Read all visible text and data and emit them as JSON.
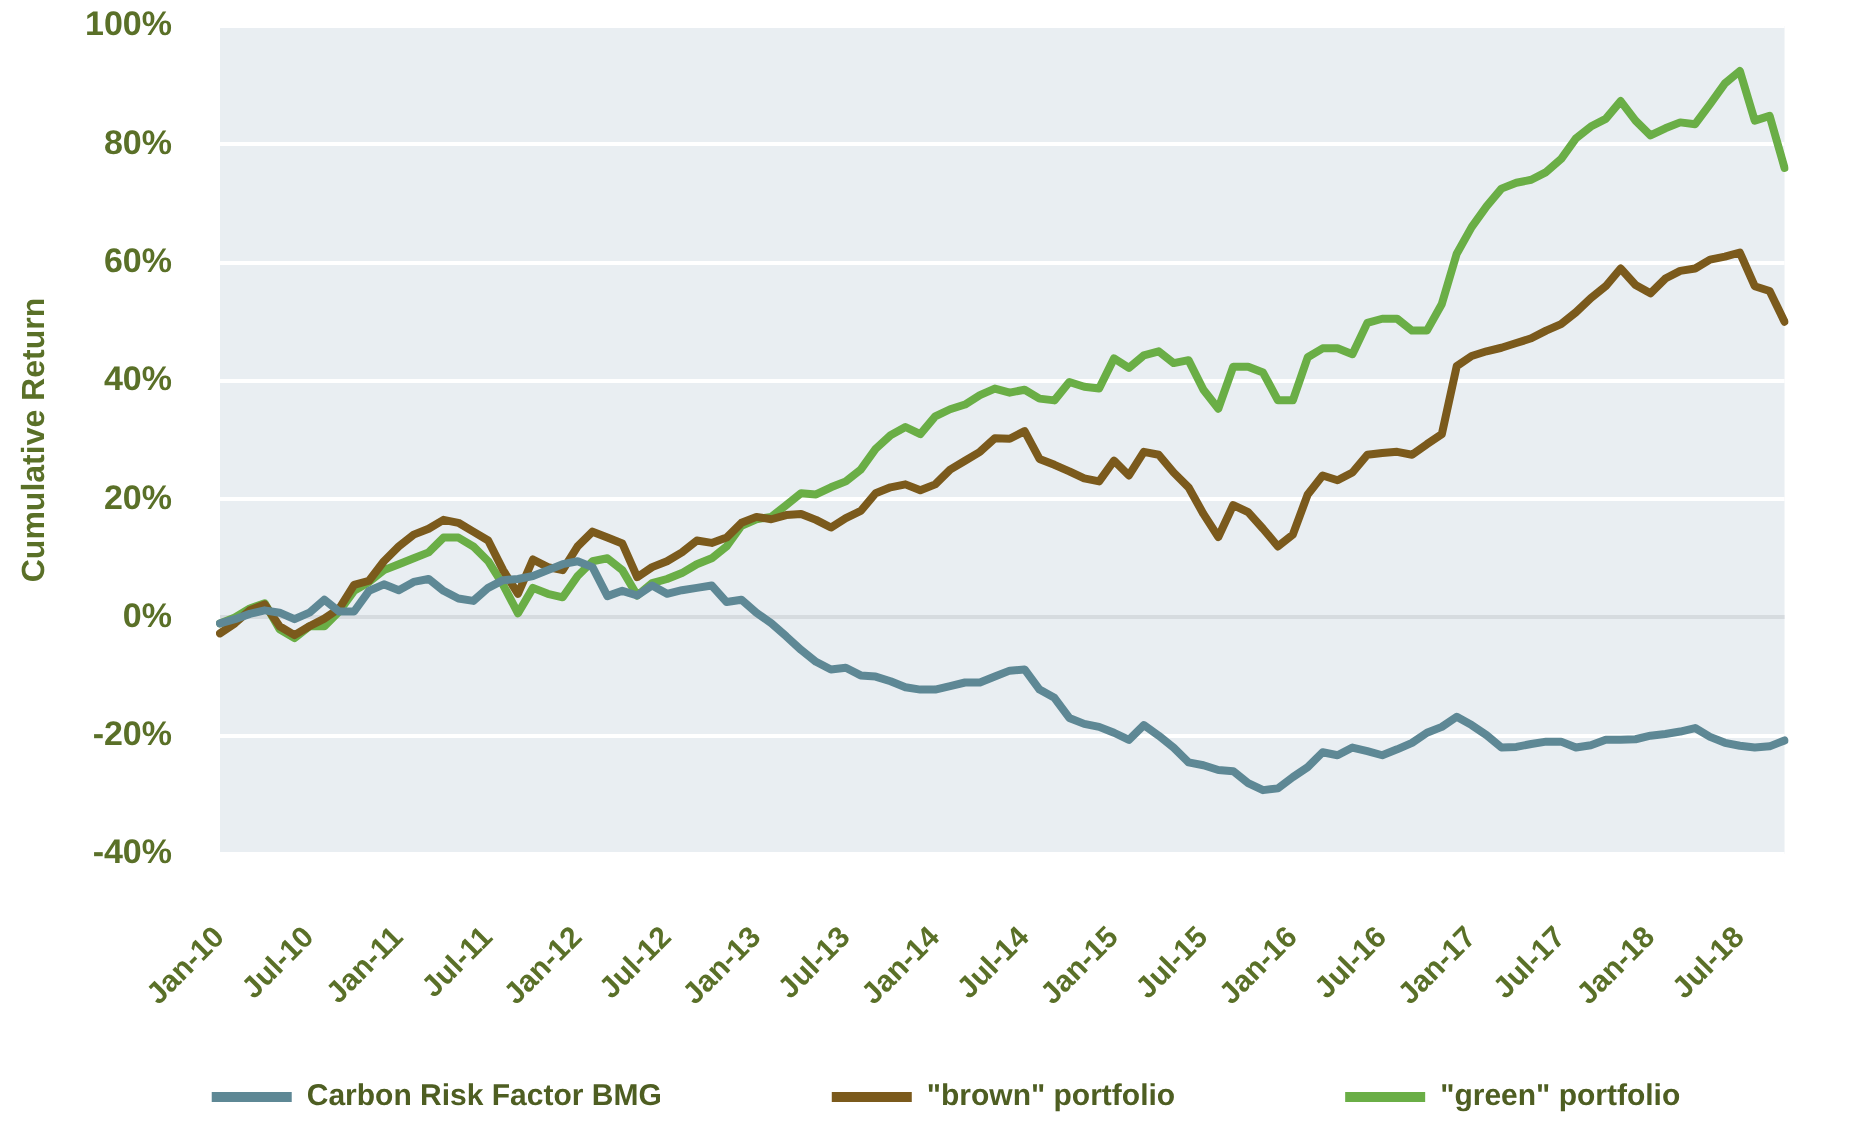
{
  "chart_data": {
    "type": "line",
    "ylabel": "Cumulative Return",
    "categories": [
      "Jan-10",
      null,
      null,
      null,
      null,
      null,
      "Jul-10",
      null,
      null,
      null,
      null,
      null,
      "Jan-11",
      null,
      null,
      null,
      null,
      null,
      "Jul-11",
      null,
      null,
      null,
      null,
      null,
      "Jan-12",
      null,
      null,
      null,
      null,
      null,
      "Jul-12",
      null,
      null,
      null,
      null,
      null,
      "Jan-13",
      null,
      null,
      null,
      null,
      null,
      "Jul-13",
      null,
      null,
      null,
      null,
      null,
      "Jan-14",
      null,
      null,
      null,
      null,
      null,
      "Jul-14",
      null,
      null,
      null,
      null,
      null,
      "Jan-15",
      null,
      null,
      null,
      null,
      null,
      "Jul-15",
      null,
      null,
      null,
      null,
      null,
      "Jan-16",
      null,
      null,
      null,
      null,
      null,
      "Jul-16",
      null,
      null,
      null,
      null,
      null,
      "Jan-17",
      null,
      null,
      null,
      null,
      null,
      "Jul-17",
      null,
      null,
      null,
      null,
      null,
      "Jan-18",
      null,
      null,
      null,
      null,
      null,
      "Jul-18",
      null,
      null,
      null
    ],
    "series": [
      {
        "name": "Carbon Risk Factor BMG",
        "color": "#5e8895",
        "values": [
          -1,
          -0.3,
          0.6,
          1.2,
          0.8,
          -0.3,
          0.8,
          3,
          1,
          1,
          4.5,
          5.6,
          4.6,
          6,
          6.5,
          4.5,
          3.2,
          2.8,
          5,
          6.3,
          6.5,
          7,
          8,
          9,
          9.5,
          8.5,
          3.6,
          4.5,
          3.7,
          5.4,
          4,
          4.6,
          5,
          5.4,
          2.6,
          3,
          0.8,
          -1,
          -3.2,
          -5.5,
          -7.5,
          -8.8,
          -8.5,
          -9.8,
          -10,
          -10.8,
          -11.8,
          -12.2,
          -12.2,
          -11.6,
          -11,
          -11,
          -10,
          -9,
          -8.8,
          -12.2,
          -13.6,
          -17,
          -18,
          -18.5,
          -19.5,
          -20.7,
          -18.2,
          -20,
          -22,
          -24.5,
          -25,
          -25.8,
          -26,
          -28,
          -29.2,
          -28.9,
          -27,
          -25.3,
          -22.8,
          -23.3,
          -22,
          -22.6,
          -23.3,
          -22.3,
          -21.2,
          -19.5,
          -18.5,
          -16.8,
          -18.2,
          -19.9,
          -22,
          -21.9,
          -21.4,
          -21,
          -21,
          -22,
          -21.6,
          -20.7,
          -20.7,
          -20.6,
          -20,
          -19.7,
          -19.3,
          -18.7,
          -20.2,
          -21.2,
          -21.7,
          -22,
          -21.8,
          -20.8
        ]
      },
      {
        "name": "\"brown\" portfolio",
        "color": "#7b5a1c",
        "values": [
          -2.7,
          -1,
          1.2,
          2.2,
          -1.5,
          -3,
          -1.5,
          -0.2,
          1.5,
          5.5,
          6.2,
          9.5,
          12,
          14,
          15,
          16.5,
          16,
          14.5,
          13,
          8,
          4,
          9.8,
          8.5,
          8,
          12,
          14.5,
          13.5,
          12.5,
          6.8,
          8.5,
          9.5,
          11,
          13,
          12.6,
          13.5,
          16,
          17,
          16.6,
          17.3,
          17.5,
          16.5,
          15.2,
          16.8,
          18,
          21,
          22,
          22.5,
          21.5,
          22.5,
          25,
          26.5,
          28,
          30.3,
          30.2,
          31.5,
          26.8,
          25.8,
          24.7,
          23.5,
          23,
          26.5,
          24,
          28,
          27.5,
          24.5,
          22,
          17.5,
          13.6,
          19,
          17.8,
          15,
          12,
          14,
          20.8,
          24,
          23.2,
          24.5,
          27.5,
          27.8,
          28,
          27.5,
          29.3,
          31,
          42.5,
          44.2,
          45,
          45.6,
          46.4,
          47.2,
          48.5,
          49.6,
          51.6,
          54,
          56,
          59,
          56.2,
          54.8,
          57.3,
          58.6,
          59,
          60.5,
          61,
          61.7,
          56,
          55.2,
          50
        ]
      },
      {
        "name": "\"green\" portfolio",
        "color": "#6aae46",
        "values": [
          -1,
          0,
          1.5,
          2.4,
          -2,
          -3.5,
          -1.5,
          -1.5,
          1,
          4.5,
          6,
          8,
          9,
          10,
          11,
          13.5,
          13.5,
          12,
          9.5,
          5.5,
          0.7,
          5,
          4,
          3.4,
          7,
          9.5,
          10,
          8,
          3.7,
          5.8,
          6.5,
          7.5,
          9,
          10,
          12,
          15.5,
          16.6,
          17,
          19,
          21,
          20.8,
          22,
          23,
          25,
          28.5,
          30.8,
          32.2,
          31,
          34,
          35.2,
          36,
          37.6,
          38.7,
          38,
          38.5,
          37,
          36.7,
          39.8,
          39,
          38.7,
          43.8,
          42.2,
          44.3,
          45,
          43,
          43.5,
          38.5,
          35.3,
          42.4,
          42.4,
          41.4,
          36.7,
          36.7,
          44,
          45.5,
          45.5,
          44.5,
          49.8,
          50.5,
          50.5,
          48.5,
          48.5,
          53,
          61.5,
          66,
          69.5,
          72.5,
          73.5,
          74,
          75.3,
          77.5,
          81,
          83,
          84.3,
          87.3,
          84,
          81.5,
          82.7,
          83.7,
          83.4,
          86.8,
          90.3,
          92.4,
          84,
          84.8,
          76
        ]
      }
    ],
    "ylim": [
      -40,
      100
    ],
    "yticks": [
      {
        "value": -40,
        "label": "-40%"
      },
      {
        "value": -20,
        "label": "-20%"
      },
      {
        "value": 0,
        "label": "0%"
      },
      {
        "value": 20,
        "label": "20%"
      },
      {
        "value": 40,
        "label": "40%"
      },
      {
        "value": 60,
        "label": "60%"
      },
      {
        "value": 80,
        "label": "80%"
      },
      {
        "value": 100,
        "label": "100%"
      }
    ],
    "grid": "y",
    "legend": "bottom",
    "marker": "none",
    "line_style": "solid"
  }
}
